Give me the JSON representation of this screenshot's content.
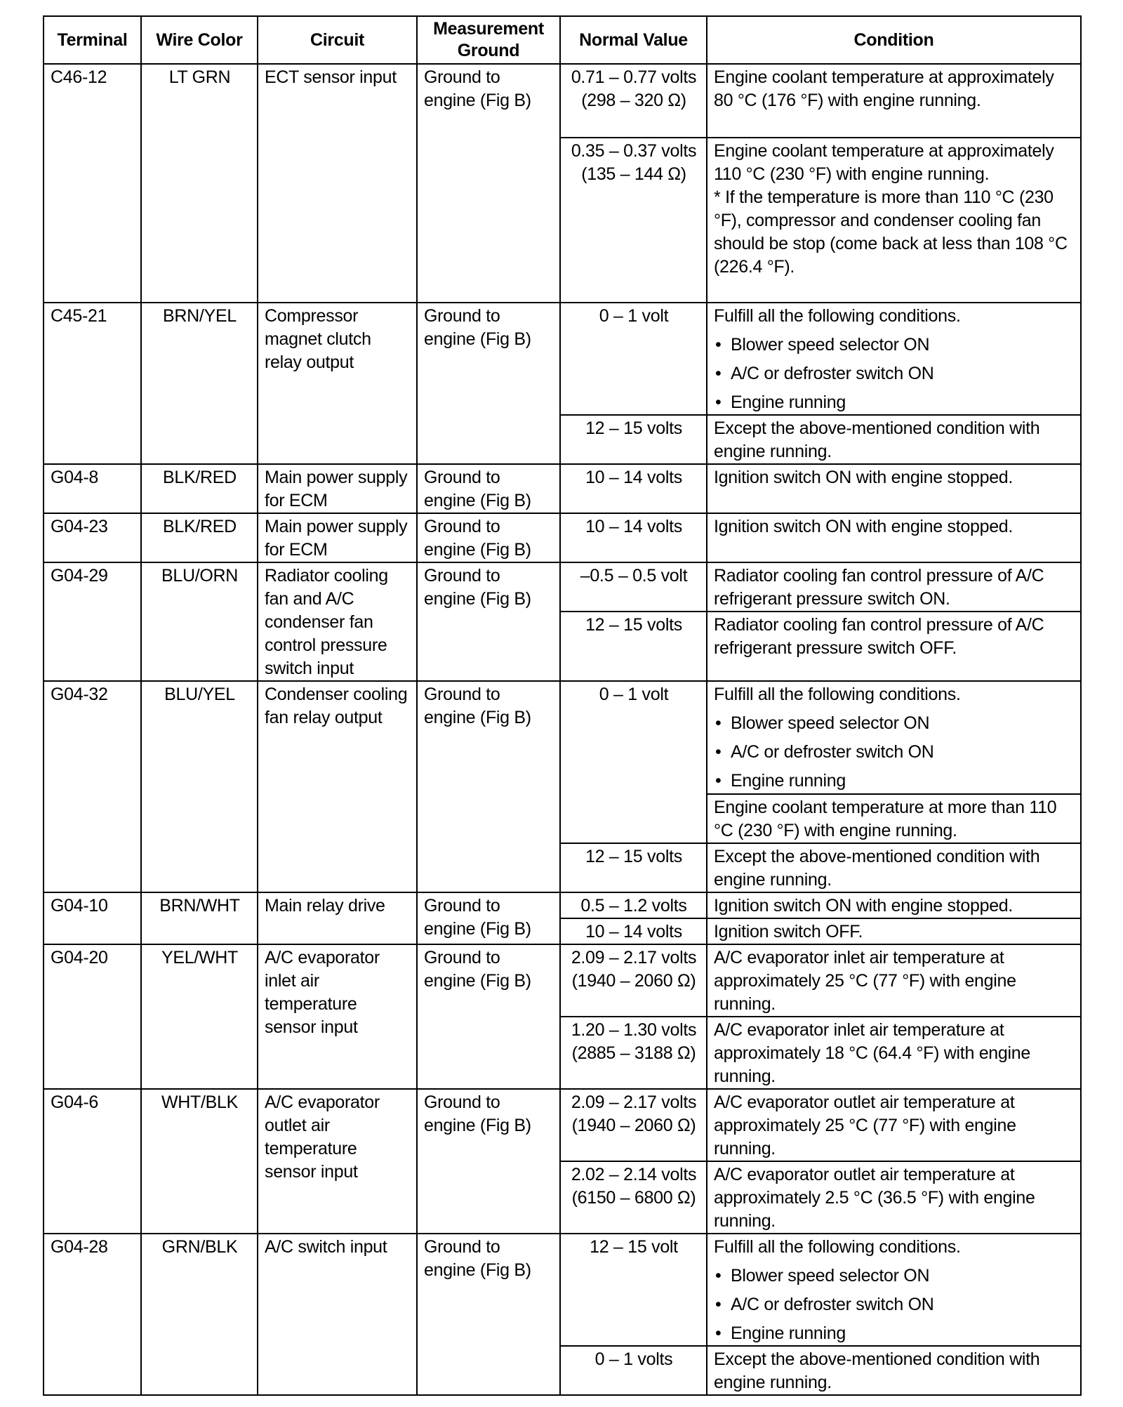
{
  "headers": [
    "Terminal",
    "Wire Color",
    "Circuit",
    "Measurement Ground",
    "Normal Value",
    "Condition"
  ],
  "rows": [
    {
      "terminal": "C46-12",
      "wire": "LT GRN",
      "circuit": "ECT sensor input",
      "ground": "Ground to engine (Fig B)",
      "subs": [
        {
          "value": "0.71 – 0.77 volts (298 – 320 Ω)",
          "conditions": [
            {
              "text": "Engine coolant temperature at approximately 80 °C (176 °F) with engine running."
            }
          ]
        },
        {
          "value": "0.35 – 0.37 volts (135 – 144 Ω)",
          "conditions": [
            {
              "text": "Engine coolant temperature at approximately 110 °C (230 °F) with engine running.",
              "note": "* If the temperature is more than 110 °C (230 °F), compressor and condenser cooling fan should be stop (come back at less than 108 °C (226.4 °F)."
            }
          ]
        }
      ]
    },
    {
      "terminal": "C45-21",
      "wire": "BRN/YEL",
      "circuit": "Compressor magnet clutch relay output",
      "ground": "Ground to engine (Fig B)",
      "subs": [
        {
          "value": "0 – 1 volt",
          "conditions": [
            {
              "text": "Fulfill all the following conditions.",
              "bullets": [
                "Blower speed selector ON",
                "A/C or defroster switch ON",
                "Engine running"
              ]
            }
          ]
        },
        {
          "value": "12 – 15 volts",
          "conditions": [
            {
              "text": "Except the above-mentioned condition with engine running."
            }
          ]
        }
      ]
    },
    {
      "terminal": "G04-8",
      "wire": "BLK/RED",
      "circuit": "Main power supply for ECM",
      "ground": "Ground to engine (Fig B)",
      "subs": [
        {
          "value": "10 – 14 volts",
          "conditions": [
            {
              "text": "Ignition switch ON with engine stopped."
            }
          ]
        }
      ]
    },
    {
      "terminal": "G04-23",
      "wire": "BLK/RED",
      "circuit": "Main power supply for ECM",
      "ground": "Ground to engine (Fig B)",
      "subs": [
        {
          "value": "10 – 14 volts",
          "conditions": [
            {
              "text": "Ignition switch ON with engine stopped."
            }
          ]
        }
      ]
    },
    {
      "terminal": "G04-29",
      "wire": "BLU/ORN",
      "circuit": "Radiator cooling fan and A/C condenser fan control pressure switch input",
      "ground": "Ground to engine (Fig B)",
      "subs": [
        {
          "value": "–0.5 – 0.5 volt",
          "conditions": [
            {
              "text": "Radiator cooling fan control pressure of A/C refrigerant pressure switch ON."
            }
          ]
        },
        {
          "value": "12 – 15 volts",
          "conditions": [
            {
              "text": "Radiator cooling fan control pressure of A/C refrigerant pressure switch OFF."
            }
          ]
        }
      ]
    },
    {
      "terminal": "G04-32",
      "wire": "BLU/YEL",
      "circuit": "Condenser cooling fan relay output",
      "ground": "Ground to engine (Fig B)",
      "subs": [
        {
          "value": "0 – 1 volt",
          "conditions": [
            {
              "text": "Fulfill all the following conditions.",
              "bullets": [
                "Blower speed selector ON",
                "A/C or defroster switch ON",
                "Engine running"
              ]
            },
            {
              "text": "Engine coolant temperature at more than 110 °C (230 °F) with engine running."
            }
          ]
        },
        {
          "value": "12 – 15 volts",
          "conditions": [
            {
              "text": "Except the above-mentioned condition with engine running."
            }
          ]
        }
      ]
    },
    {
      "terminal": "G04-10",
      "wire": "BRN/WHT",
      "circuit": "Main relay drive",
      "ground": "Ground to engine (Fig B)",
      "subs": [
        {
          "value": "0.5 – 1.2 volts",
          "conditions": [
            {
              "text": "Ignition switch ON with engine stopped."
            }
          ]
        },
        {
          "value": "10 – 14 volts",
          "conditions": [
            {
              "text": "Ignition switch OFF."
            }
          ]
        }
      ]
    },
    {
      "terminal": "G04-20",
      "wire": "YEL/WHT",
      "circuit": "A/C evaporator inlet air temperature sensor input",
      "ground": "Ground to engine (Fig B)",
      "subs": [
        {
          "value": "2.09 – 2.17 volts (1940 – 2060 Ω)",
          "conditions": [
            {
              "text": "A/C evaporator inlet air temperature at approximately 25 °C (77 °F) with engine running."
            }
          ]
        },
        {
          "value": "1.20 – 1.30 volts (2885 – 3188 Ω)",
          "conditions": [
            {
              "text": "A/C evaporator inlet air temperature at approximately 18 °C (64.4 °F) with engine running."
            }
          ]
        }
      ]
    },
    {
      "terminal": "G04-6",
      "wire": "WHT/BLK",
      "circuit": "A/C evaporator outlet air temperature sensor input",
      "ground": "Ground to engine (Fig B)",
      "subs": [
        {
          "value": "2.09 – 2.17 volts (1940 – 2060 Ω)",
          "conditions": [
            {
              "text": "A/C evaporator outlet air temperature at approximately 25 °C (77 °F) with engine running."
            }
          ]
        },
        {
          "value": "2.02 – 2.14 volts (6150 – 6800 Ω)",
          "conditions": [
            {
              "text": "A/C evaporator outlet air temperature at approximately 2.5 °C (36.5 °F) with engine running."
            }
          ]
        }
      ]
    },
    {
      "terminal": "G04-28",
      "wire": "GRN/BLK",
      "circuit": "A/C switch input",
      "ground": "Ground to engine (Fig B)",
      "subs": [
        {
          "value": "12 – 15 volt",
          "conditions": [
            {
              "text": "Fulfill all the following conditions.",
              "bullets": [
                "Blower speed selector ON",
                "A/C or defroster switch ON",
                "Engine running"
              ]
            }
          ]
        },
        {
          "value": "0 – 1 volts",
          "conditions": [
            {
              "text": "Except the above-mentioned condition with engine running."
            }
          ]
        }
      ]
    }
  ]
}
